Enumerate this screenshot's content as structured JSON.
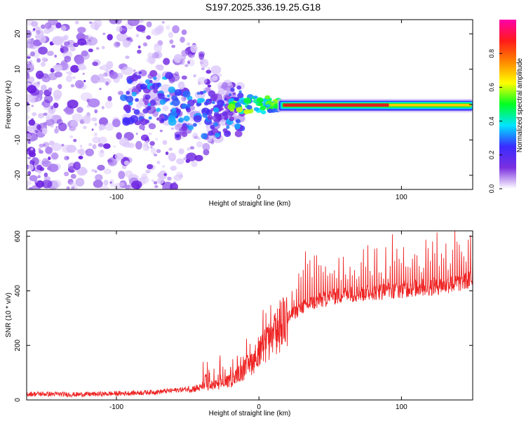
{
  "title": "S197.2025.336.19.25.G18",
  "colors": {
    "snr_line": "#ee2222",
    "axis": "#000000",
    "bright_band": "#e02020"
  },
  "chart_data": [
    {
      "type": "heatmap",
      "title": "S197.2025.336.19.25.G18",
      "xlabel": "Height of straight line (km)",
      "ylabel": "Frequency (Hz)",
      "xlim": [
        -163,
        150
      ],
      "ylim": [
        -24,
        24
      ],
      "xticks": [
        -100,
        0,
        100
      ],
      "yticks": [
        -20,
        -10,
        0,
        10,
        20
      ],
      "colorbar": {
        "label": "Normalized spectral amplitude",
        "range": [
          0,
          1
        ],
        "ticks": [
          "0.0",
          "0.2",
          "0.4",
          "0.6",
          "0.8"
        ],
        "colormap": [
          "#ffffff",
          "#7b2fe0",
          "#3a2bff",
          "#00e5ff",
          "#00ff22",
          "#ffff00",
          "#ff8800",
          "#ff1a1a",
          "#ff00aa"
        ]
      },
      "description_values": {
        "band_frequency_hz": 0,
        "band_start_km": 15,
        "band_end_km": 150
      }
    },
    {
      "type": "line",
      "xlabel": "Height of straight line (km)",
      "ylabel": "SNR (10 * v/v)",
      "xlim": [
        -163,
        150
      ],
      "ylim": [
        0,
        620
      ],
      "xticks": [
        -100,
        0,
        100
      ],
      "yticks": [
        0,
        200,
        400,
        600
      ],
      "series": [
        {
          "name": "SNR",
          "x": [
            -163,
            -150,
            -130,
            -110,
            -90,
            -70,
            -50,
            -40,
            -30,
            -20,
            -10,
            0,
            10,
            20,
            30,
            40,
            50,
            60,
            70,
            80,
            90,
            100,
            110,
            120,
            130,
            140,
            150
          ],
          "values": [
            22,
            22,
            20,
            22,
            25,
            30,
            40,
            45,
            55,
            70,
            110,
            170,
            230,
            300,
            340,
            360,
            375,
            385,
            390,
            395,
            400,
            405,
            410,
            415,
            420,
            430,
            440
          ]
        }
      ]
    }
  ]
}
